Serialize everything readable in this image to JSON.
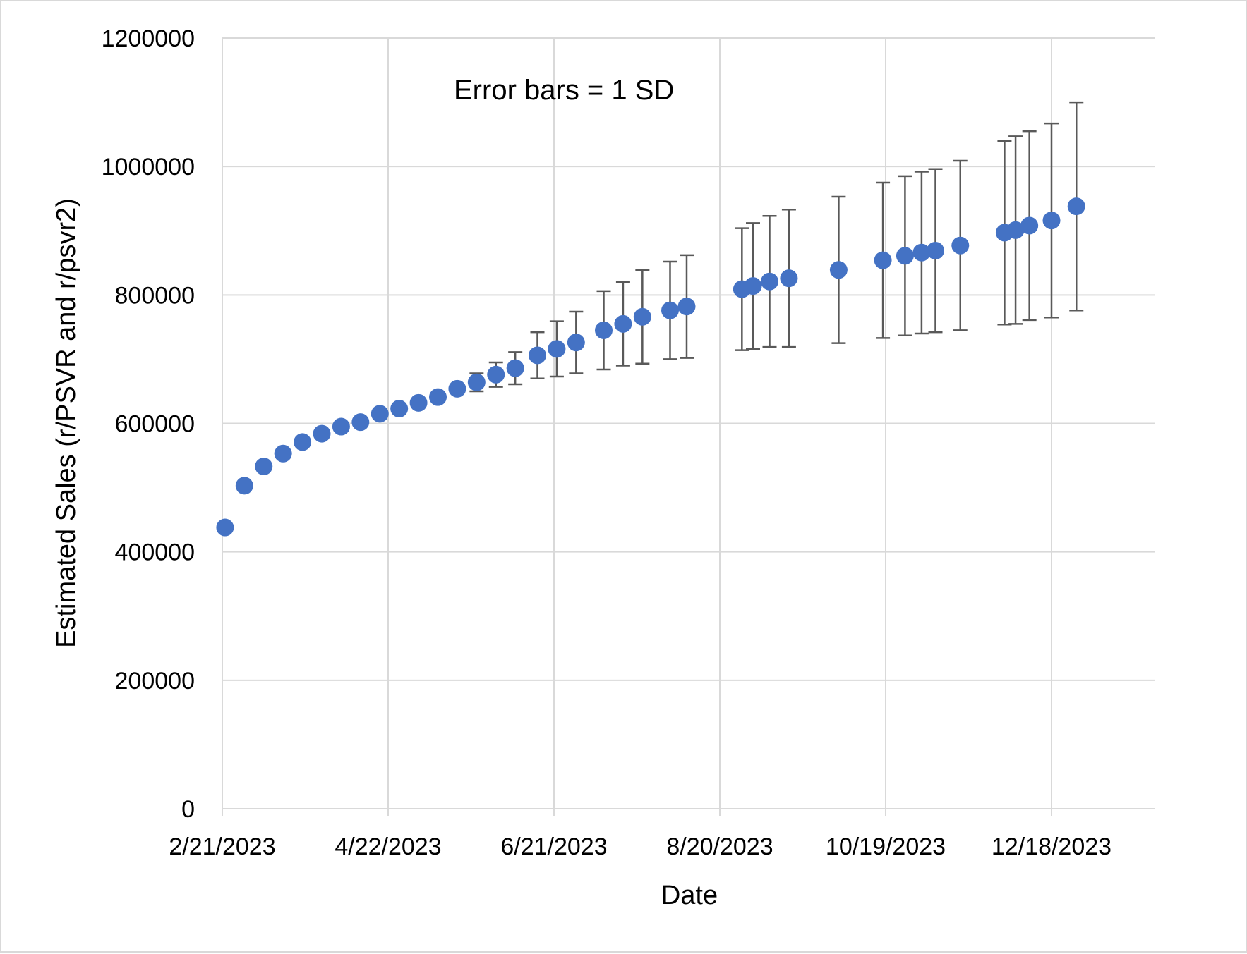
{
  "chart_data": {
    "type": "scatter",
    "title": "",
    "annotation": "Error bars = 1 SD",
    "xlabel": "Date",
    "ylabel": "Estimated Sales (r/PSVR and r/psvr2)",
    "x_axis": {
      "type": "date",
      "range": [
        "2023-02-21",
        "2024-01-07"
      ],
      "tick_labels": [
        "2/21/2023",
        "4/22/2023",
        "6/21/2023",
        "8/20/2023",
        "10/19/2023",
        "12/18/2023"
      ],
      "tick_dates": [
        "2023-02-21",
        "2023-04-22",
        "2023-06-21",
        "2023-08-20",
        "2023-10-19",
        "2023-12-18"
      ]
    },
    "y_axis": {
      "range": [
        0,
        1200000
      ],
      "tick_labels": [
        "0",
        "200000",
        "400000",
        "600000",
        "800000",
        "1000000",
        "1200000"
      ],
      "tick_values": [
        0,
        200000,
        400000,
        600000,
        800000,
        1000000,
        1200000
      ]
    },
    "grid": true,
    "legend": "none",
    "marker_color": "#4472c4",
    "error_bar_color": "#595959",
    "error_bars": "1 SD",
    "points": [
      {
        "x": "2023-02-22",
        "y": 438000,
        "sd": 0
      },
      {
        "x": "2023-03-01",
        "y": 503000,
        "sd": 0
      },
      {
        "x": "2023-03-08",
        "y": 533000,
        "sd": 0
      },
      {
        "x": "2023-03-15",
        "y": 553000,
        "sd": 0
      },
      {
        "x": "2023-03-22",
        "y": 571000,
        "sd": 0
      },
      {
        "x": "2023-03-29",
        "y": 584000,
        "sd": 0
      },
      {
        "x": "2023-04-05",
        "y": 595000,
        "sd": 0
      },
      {
        "x": "2023-04-12",
        "y": 602000,
        "sd": 0
      },
      {
        "x": "2023-04-19",
        "y": 615000,
        "sd": 0
      },
      {
        "x": "2023-04-26",
        "y": 623000,
        "sd": 0
      },
      {
        "x": "2023-05-03",
        "y": 632000,
        "sd": 0
      },
      {
        "x": "2023-05-10",
        "y": 641000,
        "sd": 0
      },
      {
        "x": "2023-05-17",
        "y": 654000,
        "sd": 7000
      },
      {
        "x": "2023-05-24",
        "y": 664000,
        "sd": 14000
      },
      {
        "x": "2023-05-31",
        "y": 676000,
        "sd": 19000
      },
      {
        "x": "2023-06-07",
        "y": 686000,
        "sd": 25000
      },
      {
        "x": "2023-06-15",
        "y": 706000,
        "sd": 36000
      },
      {
        "x": "2023-06-22",
        "y": 716000,
        "sd": 43000
      },
      {
        "x": "2023-06-29",
        "y": 726000,
        "sd": 48000
      },
      {
        "x": "2023-07-09",
        "y": 745000,
        "sd": 61000
      },
      {
        "x": "2023-07-16",
        "y": 755000,
        "sd": 65000
      },
      {
        "x": "2023-07-23",
        "y": 766000,
        "sd": 73000
      },
      {
        "x": "2023-08-02",
        "y": 776000,
        "sd": 76000
      },
      {
        "x": "2023-08-08",
        "y": 782000,
        "sd": 80000
      },
      {
        "x": "2023-08-28",
        "y": 809000,
        "sd": 95000
      },
      {
        "x": "2023-09-01",
        "y": 814000,
        "sd": 98000
      },
      {
        "x": "2023-09-07",
        "y": 821000,
        "sd": 102000
      },
      {
        "x": "2023-09-14",
        "y": 826000,
        "sd": 107000
      },
      {
        "x": "2023-10-02",
        "y": 839000,
        "sd": 114000
      },
      {
        "x": "2023-10-18",
        "y": 854000,
        "sd": 121000
      },
      {
        "x": "2023-10-26",
        "y": 861000,
        "sd": 124000
      },
      {
        "x": "2023-11-01",
        "y": 866000,
        "sd": 126000
      },
      {
        "x": "2023-11-06",
        "y": 869000,
        "sd": 127000
      },
      {
        "x": "2023-11-15",
        "y": 877000,
        "sd": 132000
      },
      {
        "x": "2023-12-01",
        "y": 897000,
        "sd": 143000
      },
      {
        "x": "2023-12-05",
        "y": 901000,
        "sd": 146000
      },
      {
        "x": "2023-12-10",
        "y": 908000,
        "sd": 147000
      },
      {
        "x": "2023-12-18",
        "y": 916000,
        "sd": 151000
      },
      {
        "x": "2023-12-27",
        "y": 938000,
        "sd": 162000
      }
    ]
  }
}
